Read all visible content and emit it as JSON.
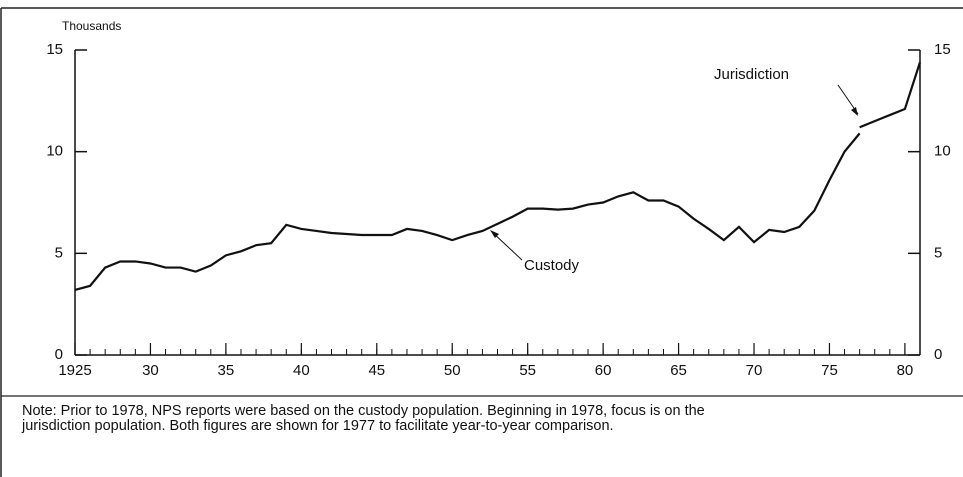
{
  "chart_data": {
    "type": "line",
    "y_unit_label": "Thousands",
    "x": [
      1925,
      1926,
      1927,
      1928,
      1929,
      1930,
      1931,
      1932,
      1933,
      1934,
      1935,
      1936,
      1937,
      1938,
      1939,
      1940,
      1941,
      1942,
      1943,
      1944,
      1945,
      1946,
      1947,
      1948,
      1949,
      1950,
      1951,
      1952,
      1953,
      1954,
      1955,
      1956,
      1957,
      1958,
      1959,
      1960,
      1961,
      1962,
      1963,
      1964,
      1965,
      1966,
      1967,
      1968,
      1969,
      1970,
      1971,
      1972,
      1973,
      1974,
      1975,
      1976,
      1977,
      1978,
      1979,
      1980,
      1981
    ],
    "series": [
      {
        "name": "Custody",
        "color": "#111111",
        "values": [
          3.2,
          3.4,
          4.3,
          4.6,
          4.6,
          4.5,
          4.3,
          4.3,
          4.1,
          4.4,
          4.9,
          5.1,
          5.4,
          5.5,
          6.4,
          6.2,
          6.1,
          6.0,
          5.95,
          5.9,
          5.9,
          5.9,
          6.2,
          6.1,
          5.9,
          5.65,
          5.9,
          6.1,
          6.45,
          6.8,
          7.2,
          7.2,
          7.15,
          7.2,
          7.4,
          7.5,
          7.8,
          8.0,
          7.6,
          7.6,
          7.3,
          6.7,
          6.2,
          5.65,
          6.3,
          5.55,
          6.15,
          6.05,
          6.3,
          7.1,
          8.6,
          10.0,
          10.9,
          null,
          null,
          null,
          null
        ]
      },
      {
        "name": "Jurisdiction",
        "color": "#111111",
        "values": [
          null,
          null,
          null,
          null,
          null,
          null,
          null,
          null,
          null,
          null,
          null,
          null,
          null,
          null,
          null,
          null,
          null,
          null,
          null,
          null,
          null,
          null,
          null,
          null,
          null,
          null,
          null,
          null,
          null,
          null,
          null,
          null,
          null,
          null,
          null,
          null,
          null,
          null,
          null,
          null,
          null,
          null,
          null,
          null,
          null,
          null,
          null,
          null,
          null,
          null,
          null,
          null,
          11.2,
          11.5,
          11.8,
          12.1,
          14.4
        ]
      }
    ],
    "xlim": [
      1925,
      1981
    ],
    "xticks": [
      1925,
      {
        "value": 1930,
        "label": "30"
      },
      {
        "value": 1935,
        "label": "35"
      },
      {
        "value": 1940,
        "label": "40"
      },
      {
        "value": 1945,
        "label": "45"
      },
      {
        "value": 1950,
        "label": "50"
      },
      {
        "value": 1955,
        "label": "55"
      },
      {
        "value": 1960,
        "label": "60"
      },
      {
        "value": 1965,
        "label": "65"
      },
      {
        "value": 1970,
        "label": "70"
      },
      {
        "value": 1975,
        "label": "75"
      },
      {
        "value": 1980,
        "label": "80"
      }
    ],
    "ylim": [
      0,
      15
    ],
    "yticks": [
      0,
      5,
      10,
      15
    ],
    "y2lim": [
      0,
      15
    ],
    "y2ticks": [
      0,
      5,
      10,
      15
    ],
    "note": "Note: Prior to 1978, NPS reports were based on the custody population. Beginning in 1978, focus is on the jurisdiction population. Both figures are shown for 1977 to facilitate year-to-year comparison."
  }
}
